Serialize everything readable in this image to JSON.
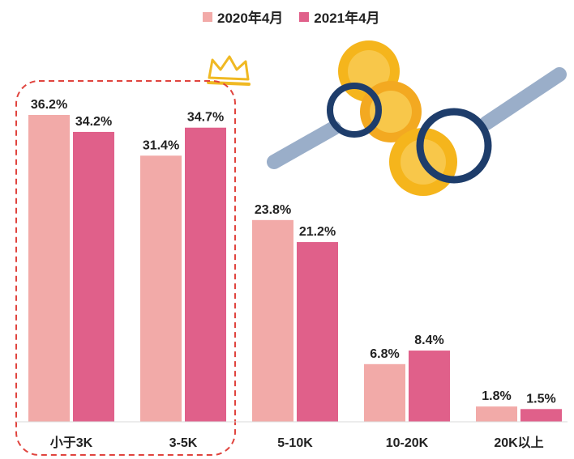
{
  "chart_data": {
    "type": "bar",
    "title": "",
    "xlabel": "",
    "ylabel": "",
    "categories": [
      "小于3K",
      "3-5K",
      "5-10K",
      "10-20K",
      "20K以上"
    ],
    "series": [
      {
        "name": "2020年4月",
        "color": "#f2aaa8",
        "values": [
          36.2,
          31.4,
          23.8,
          6.8,
          1.8
        ],
        "labels": [
          "36.2%",
          "31.4%",
          "23.8%",
          "6.8%",
          "1.8%"
        ]
      },
      {
        "name": "2021年4月",
        "color": "#e0608a",
        "values": [
          34.2,
          34.7,
          21.2,
          8.4,
          1.5
        ],
        "labels": [
          "34.2%",
          "34.7%",
          "21.2%",
          "8.4%",
          "1.5%"
        ]
      }
    ],
    "ylim": [
      0,
      40
    ],
    "grid": false,
    "legend_position": "top-center",
    "highlight": {
      "categories": [
        "小于3K",
        "3-5K"
      ],
      "style": "dashed-red-rounded-box",
      "color": "#e0443e"
    }
  }
}
